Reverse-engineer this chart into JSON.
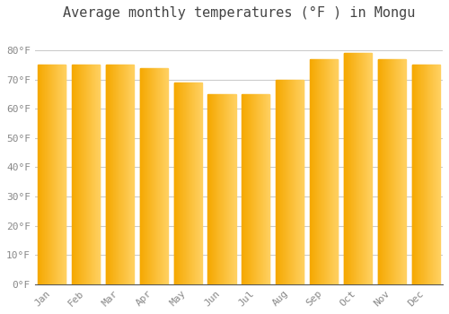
{
  "title": "Average monthly temperatures (°F ) in Mongu",
  "months": [
    "Jan",
    "Feb",
    "Mar",
    "Apr",
    "May",
    "Jun",
    "Jul",
    "Aug",
    "Sep",
    "Oct",
    "Nov",
    "Dec"
  ],
  "values": [
    75,
    75,
    75,
    74,
    69,
    65,
    65,
    70,
    77,
    79,
    77,
    75
  ],
  "bar_color_left": "#F5A800",
  "bar_color_right": "#FFD060",
  "background_color": "#FFFFFF",
  "plot_bg_color": "#FFFFFF",
  "grid_color": "#CCCCCC",
  "ylim": [
    0,
    88
  ],
  "yticks": [
    0,
    10,
    20,
    30,
    40,
    50,
    60,
    70,
    80
  ],
  "ytick_labels": [
    "0°F",
    "10°F",
    "20°F",
    "30°F",
    "40°F",
    "50°F",
    "60°F",
    "70°F",
    "80°F"
  ],
  "title_fontsize": 11,
  "tick_fontsize": 8,
  "figsize": [
    5.0,
    3.5
  ],
  "dpi": 100
}
